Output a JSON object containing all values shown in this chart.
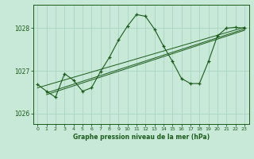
{
  "bg_color": "#c8e8d8",
  "plot_bg_color": "#c8e8d8",
  "grid_color": "#aad4c4",
  "line_color": "#1a5c1a",
  "xlabel": "Graphe pression niveau de la mer (hPa)",
  "ylim": [
    1025.75,
    1028.55
  ],
  "xlim": [
    -0.5,
    23.5
  ],
  "yticks": [
    1026,
    1027,
    1028
  ],
  "xticks": [
    0,
    1,
    2,
    3,
    4,
    5,
    6,
    7,
    8,
    9,
    10,
    11,
    12,
    13,
    14,
    15,
    16,
    17,
    18,
    19,
    20,
    21,
    22,
    23
  ],
  "main_line": [
    [
      0,
      1026.68
    ],
    [
      1,
      1026.52
    ],
    [
      2,
      1026.38
    ],
    [
      3,
      1026.93
    ],
    [
      4,
      1026.78
    ],
    [
      5,
      1026.52
    ],
    [
      6,
      1026.6
    ],
    [
      7,
      1026.98
    ],
    [
      8,
      1027.32
    ],
    [
      9,
      1027.72
    ],
    [
      10,
      1028.05
    ],
    [
      11,
      1028.32
    ],
    [
      12,
      1028.28
    ],
    [
      13,
      1027.98
    ],
    [
      14,
      1027.58
    ],
    [
      15,
      1027.22
    ],
    [
      16,
      1026.82
    ],
    [
      17,
      1026.7
    ],
    [
      18,
      1026.7
    ],
    [
      19,
      1027.22
    ],
    [
      20,
      1027.82
    ],
    [
      21,
      1028.0
    ],
    [
      22,
      1028.02
    ],
    [
      23,
      1028.0
    ]
  ],
  "trend_line1": [
    [
      0,
      1026.6
    ],
    [
      23,
      1028.02
    ]
  ],
  "trend_line2": [
    [
      1,
      1026.48
    ],
    [
      23,
      1027.98
    ]
  ],
  "trend_line3": [
    [
      1,
      1026.44
    ],
    [
      23,
      1027.95
    ]
  ],
  "figsize": [
    3.2,
    2.0
  ],
  "dpi": 100
}
